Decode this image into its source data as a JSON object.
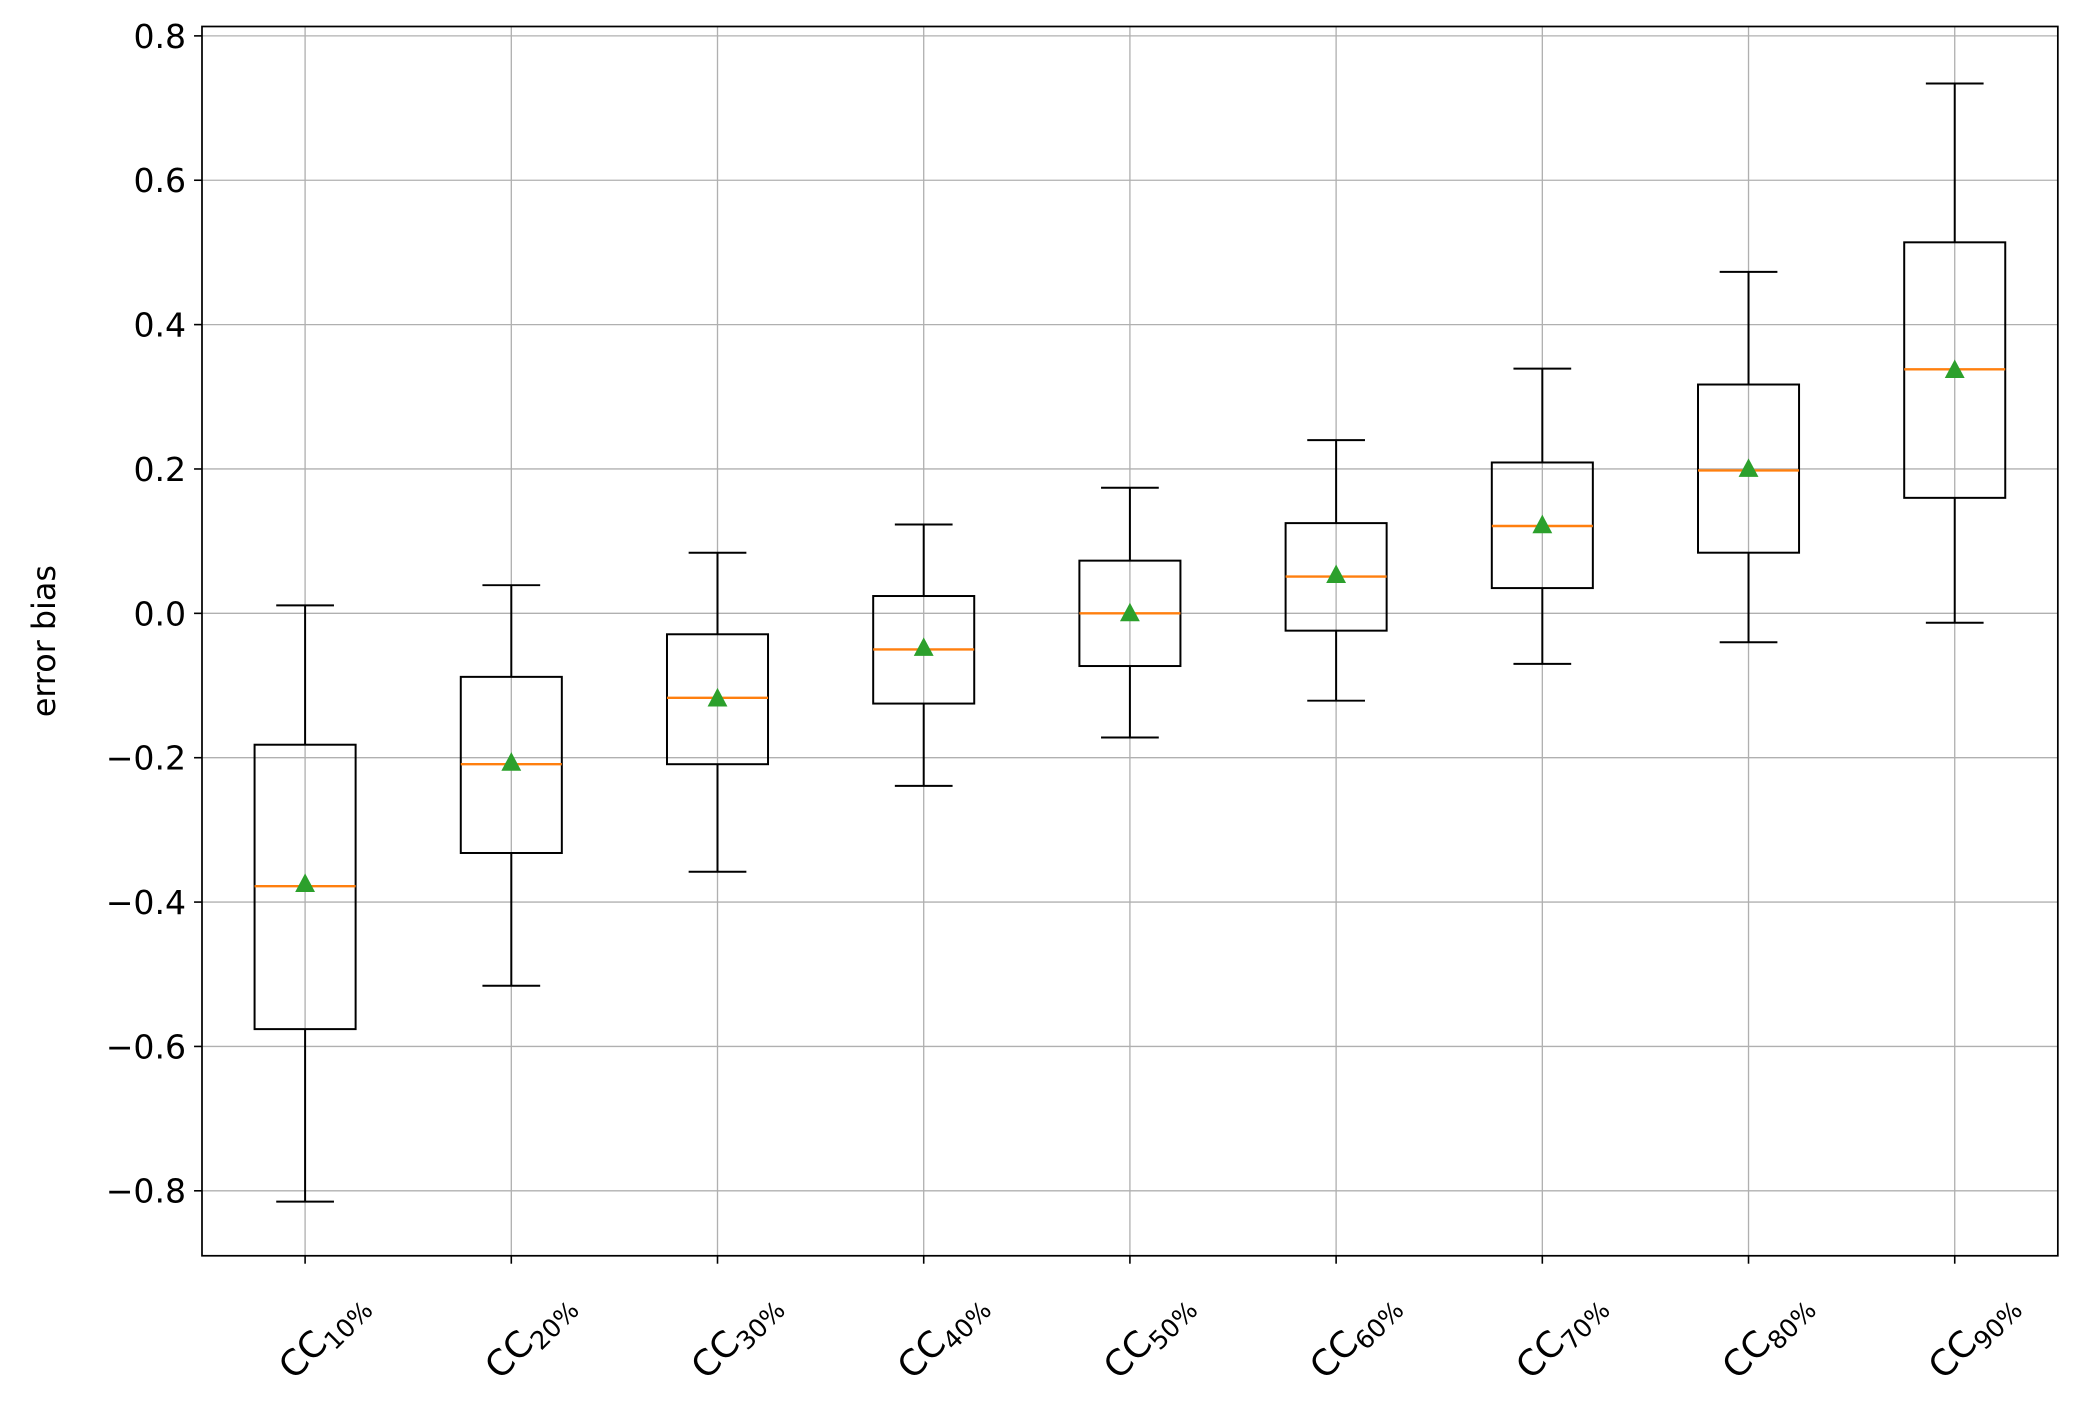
{
  "chart_data": {
    "type": "box",
    "title": "",
    "xlabel": "",
    "ylabel": "error bias",
    "ylim": [
      -0.89,
      0.813
    ],
    "yticks": [
      -0.8,
      -0.6,
      -0.4,
      -0.2,
      0.0,
      0.2,
      0.4,
      0.6,
      0.8
    ],
    "ytick_labels": [
      "−0.8",
      "−0.6",
      "−0.4",
      "−0.2",
      "0.0",
      "0.2",
      "0.4",
      "0.6",
      "0.8"
    ],
    "grid": true,
    "categories": [
      {
        "base": "CC",
        "sub": "10%"
      },
      {
        "base": "CC",
        "sub": "20%"
      },
      {
        "base": "CC",
        "sub": "30%"
      },
      {
        "base": "CC",
        "sub": "40%"
      },
      {
        "base": "CC",
        "sub": "50%"
      },
      {
        "base": "CC",
        "sub": "60%"
      },
      {
        "base": "CC",
        "sub": "70%"
      },
      {
        "base": "CC",
        "sub": "80%"
      },
      {
        "base": "CC",
        "sub": "90%"
      }
    ],
    "boxes": [
      {
        "whisker_low": -0.815,
        "q1": -0.576,
        "median": -0.378,
        "q3": -0.182,
        "whisker_high": 0.011,
        "mean": -0.375
      },
      {
        "whisker_low": -0.516,
        "q1": -0.332,
        "median": -0.209,
        "q3": -0.088,
        "whisker_high": 0.039,
        "mean": -0.207
      },
      {
        "whisker_low": -0.358,
        "q1": -0.209,
        "median": -0.117,
        "q3": -0.029,
        "whisker_high": 0.084,
        "mean": -0.118
      },
      {
        "whisker_low": -0.239,
        "q1": -0.125,
        "median": -0.05,
        "q3": 0.024,
        "whisker_high": 0.123,
        "mean": -0.048
      },
      {
        "whisker_low": -0.172,
        "q1": -0.073,
        "median": 0.0,
        "q3": 0.073,
        "whisker_high": 0.174,
        "mean": 0.0
      },
      {
        "whisker_low": -0.121,
        "q1": -0.024,
        "median": 0.051,
        "q3": 0.125,
        "whisker_high": 0.24,
        "mean": 0.053
      },
      {
        "whisker_low": -0.07,
        "q1": 0.035,
        "median": 0.121,
        "q3": 0.209,
        "whisker_high": 0.339,
        "mean": 0.122
      },
      {
        "whisker_low": -0.04,
        "q1": 0.084,
        "median": 0.198,
        "q3": 0.317,
        "whisker_high": 0.473,
        "mean": 0.2
      },
      {
        "whisker_low": -0.013,
        "q1": 0.16,
        "median": 0.338,
        "q3": 0.514,
        "whisker_high": 0.734,
        "mean": 0.337
      }
    ],
    "colors": {
      "box": "#000000",
      "median": "#ff7f0e",
      "mean": "#2ca02c",
      "grid": "#b0b0b0"
    }
  }
}
